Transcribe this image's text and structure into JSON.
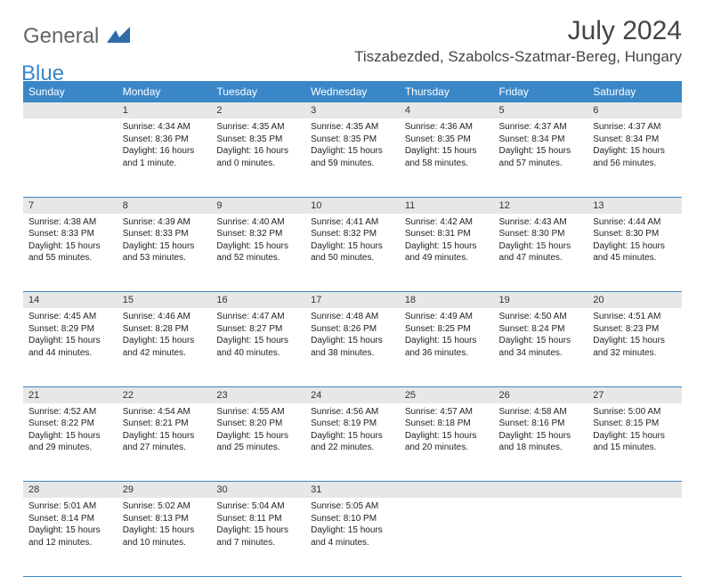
{
  "logo": {
    "line1": "General",
    "line2": "Blue"
  },
  "month_title": "July 2024",
  "location": "Tiszabezded, Szabolcs-Szatmar-Bereg, Hungary",
  "colors": {
    "header_bg": "#3a87c8",
    "header_text": "#ffffff",
    "daynum_bg": "#e7e7e7",
    "text": "#222222",
    "rule": "#3a87c8"
  },
  "weekdays": [
    "Sunday",
    "Monday",
    "Tuesday",
    "Wednesday",
    "Thursday",
    "Friday",
    "Saturday"
  ],
  "weeks": [
    {
      "nums": [
        "",
        "1",
        "2",
        "3",
        "4",
        "5",
        "6"
      ],
      "cells": [
        null,
        {
          "sr": "Sunrise: 4:34 AM",
          "ss": "Sunset: 8:36 PM",
          "dl": "Daylight: 16 hours and 1 minute."
        },
        {
          "sr": "Sunrise: 4:35 AM",
          "ss": "Sunset: 8:35 PM",
          "dl": "Daylight: 16 hours and 0 minutes."
        },
        {
          "sr": "Sunrise: 4:35 AM",
          "ss": "Sunset: 8:35 PM",
          "dl": "Daylight: 15 hours and 59 minutes."
        },
        {
          "sr": "Sunrise: 4:36 AM",
          "ss": "Sunset: 8:35 PM",
          "dl": "Daylight: 15 hours and 58 minutes."
        },
        {
          "sr": "Sunrise: 4:37 AM",
          "ss": "Sunset: 8:34 PM",
          "dl": "Daylight: 15 hours and 57 minutes."
        },
        {
          "sr": "Sunrise: 4:37 AM",
          "ss": "Sunset: 8:34 PM",
          "dl": "Daylight: 15 hours and 56 minutes."
        }
      ]
    },
    {
      "nums": [
        "7",
        "8",
        "9",
        "10",
        "11",
        "12",
        "13"
      ],
      "cells": [
        {
          "sr": "Sunrise: 4:38 AM",
          "ss": "Sunset: 8:33 PM",
          "dl": "Daylight: 15 hours and 55 minutes."
        },
        {
          "sr": "Sunrise: 4:39 AM",
          "ss": "Sunset: 8:33 PM",
          "dl": "Daylight: 15 hours and 53 minutes."
        },
        {
          "sr": "Sunrise: 4:40 AM",
          "ss": "Sunset: 8:32 PM",
          "dl": "Daylight: 15 hours and 52 minutes."
        },
        {
          "sr": "Sunrise: 4:41 AM",
          "ss": "Sunset: 8:32 PM",
          "dl": "Daylight: 15 hours and 50 minutes."
        },
        {
          "sr": "Sunrise: 4:42 AM",
          "ss": "Sunset: 8:31 PM",
          "dl": "Daylight: 15 hours and 49 minutes."
        },
        {
          "sr": "Sunrise: 4:43 AM",
          "ss": "Sunset: 8:30 PM",
          "dl": "Daylight: 15 hours and 47 minutes."
        },
        {
          "sr": "Sunrise: 4:44 AM",
          "ss": "Sunset: 8:30 PM",
          "dl": "Daylight: 15 hours and 45 minutes."
        }
      ]
    },
    {
      "nums": [
        "14",
        "15",
        "16",
        "17",
        "18",
        "19",
        "20"
      ],
      "cells": [
        {
          "sr": "Sunrise: 4:45 AM",
          "ss": "Sunset: 8:29 PM",
          "dl": "Daylight: 15 hours and 44 minutes."
        },
        {
          "sr": "Sunrise: 4:46 AM",
          "ss": "Sunset: 8:28 PM",
          "dl": "Daylight: 15 hours and 42 minutes."
        },
        {
          "sr": "Sunrise: 4:47 AM",
          "ss": "Sunset: 8:27 PM",
          "dl": "Daylight: 15 hours and 40 minutes."
        },
        {
          "sr": "Sunrise: 4:48 AM",
          "ss": "Sunset: 8:26 PM",
          "dl": "Daylight: 15 hours and 38 minutes."
        },
        {
          "sr": "Sunrise: 4:49 AM",
          "ss": "Sunset: 8:25 PM",
          "dl": "Daylight: 15 hours and 36 minutes."
        },
        {
          "sr": "Sunrise: 4:50 AM",
          "ss": "Sunset: 8:24 PM",
          "dl": "Daylight: 15 hours and 34 minutes."
        },
        {
          "sr": "Sunrise: 4:51 AM",
          "ss": "Sunset: 8:23 PM",
          "dl": "Daylight: 15 hours and 32 minutes."
        }
      ]
    },
    {
      "nums": [
        "21",
        "22",
        "23",
        "24",
        "25",
        "26",
        "27"
      ],
      "cells": [
        {
          "sr": "Sunrise: 4:52 AM",
          "ss": "Sunset: 8:22 PM",
          "dl": "Daylight: 15 hours and 29 minutes."
        },
        {
          "sr": "Sunrise: 4:54 AM",
          "ss": "Sunset: 8:21 PM",
          "dl": "Daylight: 15 hours and 27 minutes."
        },
        {
          "sr": "Sunrise: 4:55 AM",
          "ss": "Sunset: 8:20 PM",
          "dl": "Daylight: 15 hours and 25 minutes."
        },
        {
          "sr": "Sunrise: 4:56 AM",
          "ss": "Sunset: 8:19 PM",
          "dl": "Daylight: 15 hours and 22 minutes."
        },
        {
          "sr": "Sunrise: 4:57 AM",
          "ss": "Sunset: 8:18 PM",
          "dl": "Daylight: 15 hours and 20 minutes."
        },
        {
          "sr": "Sunrise: 4:58 AM",
          "ss": "Sunset: 8:16 PM",
          "dl": "Daylight: 15 hours and 18 minutes."
        },
        {
          "sr": "Sunrise: 5:00 AM",
          "ss": "Sunset: 8:15 PM",
          "dl": "Daylight: 15 hours and 15 minutes."
        }
      ]
    },
    {
      "nums": [
        "28",
        "29",
        "30",
        "31",
        "",
        "",
        ""
      ],
      "cells": [
        {
          "sr": "Sunrise: 5:01 AM",
          "ss": "Sunset: 8:14 PM",
          "dl": "Daylight: 15 hours and 12 minutes."
        },
        {
          "sr": "Sunrise: 5:02 AM",
          "ss": "Sunset: 8:13 PM",
          "dl": "Daylight: 15 hours and 10 minutes."
        },
        {
          "sr": "Sunrise: 5:04 AM",
          "ss": "Sunset: 8:11 PM",
          "dl": "Daylight: 15 hours and 7 minutes."
        },
        {
          "sr": "Sunrise: 5:05 AM",
          "ss": "Sunset: 8:10 PM",
          "dl": "Daylight: 15 hours and 4 minutes."
        },
        null,
        null,
        null
      ]
    }
  ]
}
